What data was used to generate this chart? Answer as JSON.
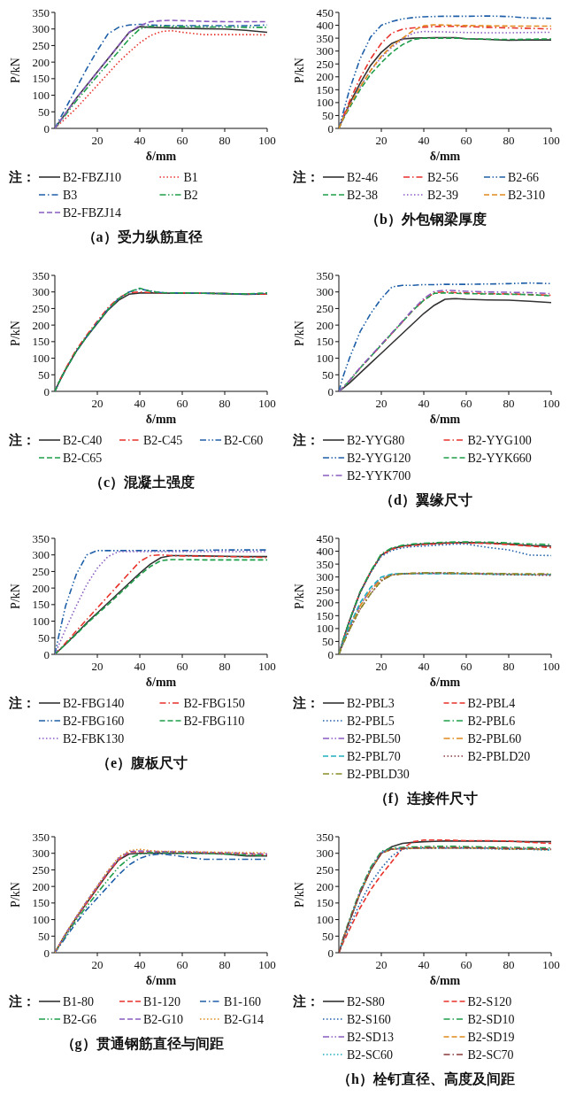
{
  "chart_data": [
    {
      "type": "line",
      "title": "（a）受力纵筋直径",
      "xlabel": "δ/mm",
      "ylabel": "P/kN",
      "legend_title": "注：",
      "legend": "bottom",
      "x": [
        0,
        2,
        5,
        10,
        15,
        20,
        25,
        30,
        35,
        40,
        45,
        50,
        55,
        60,
        70,
        80,
        90,
        100
      ],
      "xlim": [
        0,
        100
      ],
      "xticks": [
        20,
        40,
        60,
        80,
        100
      ],
      "ylim": [
        0,
        350
      ],
      "yticks": [
        0,
        50,
        100,
        150,
        200,
        250,
        300,
        350
      ],
      "series": [
        {
          "name": "B2-FBZJ10",
          "color": "#333333",
          "line_style": "solid",
          "values": [
            0,
            18,
            45,
            90,
            130,
            170,
            210,
            250,
            290,
            307,
            305,
            304,
            303,
            302,
            301,
            300,
            296,
            290
          ]
        },
        {
          "name": "B1",
          "color": "#e8322b",
          "line_style": "dotted",
          "values": [
            0,
            12,
            30,
            60,
            95,
            130,
            165,
            200,
            230,
            258,
            280,
            292,
            295,
            290,
            283,
            283,
            283,
            282
          ]
        },
        {
          "name": "B3",
          "color": "#1f5fa8",
          "line_style": "dashdot",
          "values": [
            0,
            25,
            60,
            120,
            180,
            235,
            285,
            305,
            312,
            314,
            312,
            311,
            310,
            310,
            310,
            310,
            310,
            312
          ]
        },
        {
          "name": "B2",
          "color": "#1e9e4a",
          "line_style": "dashdotdot",
          "values": [
            0,
            16,
            40,
            82,
            120,
            158,
            195,
            232,
            270,
            300,
            308,
            308,
            307,
            307,
            306,
            306,
            305,
            305
          ]
        },
        {
          "name": "B2-FBZJ14",
          "color": "#8a5cc0",
          "line_style": "dashed",
          "values": [
            0,
            18,
            45,
            90,
            130,
            170,
            210,
            250,
            290,
            310,
            322,
            325,
            326,
            325,
            323,
            322,
            322,
            322
          ]
        }
      ]
    },
    {
      "type": "line",
      "title": "（b）外包钢梁厚度",
      "xlabel": "δ/mm",
      "ylabel": "P/kN",
      "legend_title": "注：",
      "legend": "bottom",
      "x": [
        0,
        2,
        5,
        10,
        15,
        20,
        25,
        30,
        35,
        40,
        45,
        50,
        55,
        60,
        70,
        80,
        90,
        100
      ],
      "xlim": [
        0,
        100
      ],
      "xticks": [
        20,
        40,
        60,
        80,
        100
      ],
      "ylim": [
        0,
        450
      ],
      "yticks": [
        0,
        50,
        100,
        150,
        200,
        250,
        300,
        350,
        400,
        450
      ],
      "series": [
        {
          "name": "B2-46",
          "color": "#333333",
          "line_style": "solid",
          "values": [
            0,
            40,
            95,
            175,
            245,
            295,
            330,
            347,
            350,
            351,
            352,
            352,
            352,
            348,
            345,
            342,
            343,
            343
          ]
        },
        {
          "name": "B2-56",
          "color": "#e8322b",
          "line_style": "dashdot",
          "values": [
            0,
            45,
            105,
            195,
            270,
            330,
            370,
            385,
            390,
            393,
            395,
            396,
            396,
            395,
            392,
            390,
            388,
            386
          ]
        },
        {
          "name": "B2-66",
          "color": "#1f5fa8",
          "line_style": "dashdotdot",
          "values": [
            0,
            60,
            150,
            270,
            355,
            400,
            415,
            425,
            430,
            433,
            434,
            435,
            435,
            435,
            436,
            434,
            428,
            427
          ]
        },
        {
          "name": "B2-38",
          "color": "#1e9e4a",
          "line_style": "dashed",
          "values": [
            0,
            35,
            80,
            150,
            210,
            255,
            295,
            325,
            345,
            350,
            350,
            350,
            350,
            348,
            346,
            345,
            346,
            347
          ]
        },
        {
          "name": "B2-39",
          "color": "#8a5cc0",
          "line_style": "dotted",
          "values": [
            0,
            38,
            88,
            160,
            225,
            275,
            315,
            345,
            370,
            376,
            375,
            374,
            373,
            372,
            371,
            371,
            372,
            373
          ]
        },
        {
          "name": "B2-310",
          "color": "#e08a1e",
          "line_style": "dashed",
          "values": [
            0,
            38,
            88,
            160,
            225,
            280,
            320,
            350,
            380,
            398,
            402,
            401,
            400,
            399,
            398,
            397,
            397,
            397
          ]
        }
      ]
    },
    {
      "type": "line",
      "title": "（c）混凝土强度",
      "xlabel": "δ/mm",
      "ylabel": "P/kN",
      "legend_title": "注：",
      "legend": "bottom",
      "x": [
        0,
        2,
        5,
        10,
        15,
        20,
        25,
        30,
        35,
        40,
        45,
        50,
        55,
        60,
        70,
        80,
        90,
        100
      ],
      "xlim": [
        0,
        100
      ],
      "xticks": [
        20,
        40,
        60,
        80,
        100
      ],
      "ylim": [
        0,
        350
      ],
      "yticks": [
        0,
        50,
        100,
        150,
        200,
        250,
        300,
        350
      ],
      "series": [
        {
          "name": "B2-C40",
          "color": "#333333",
          "line_style": "solid",
          "values": [
            0,
            28,
            65,
            120,
            165,
            205,
            245,
            275,
            293,
            297,
            297,
            297,
            296,
            296,
            296,
            295,
            293,
            294
          ]
        },
        {
          "name": "B2-C45",
          "color": "#e8322b",
          "line_style": "dashdot",
          "values": [
            0,
            30,
            68,
            125,
            170,
            212,
            252,
            282,
            298,
            300,
            298,
            297,
            297,
            297,
            296,
            295,
            294,
            293
          ]
        },
        {
          "name": "B2-C60",
          "color": "#1f5fa8",
          "line_style": "dashdotdot",
          "values": [
            0,
            28,
            65,
            120,
            165,
            208,
            248,
            280,
            300,
            309,
            303,
            298,
            297,
            297,
            296,
            295,
            293,
            296
          ]
        },
        {
          "name": "B2-C65",
          "color": "#1e9e4a",
          "line_style": "dashed",
          "values": [
            0,
            28,
            65,
            120,
            165,
            206,
            246,
            279,
            300,
            311,
            302,
            298,
            297,
            297,
            296,
            295,
            294,
            297
          ]
        }
      ]
    },
    {
      "type": "line",
      "title": "（d）翼缘尺寸",
      "xlabel": "δ/mm",
      "ylabel": "P/kN",
      "legend_title": "注：",
      "legend": "bottom",
      "x": [
        0,
        2,
        5,
        10,
        15,
        20,
        25,
        30,
        35,
        40,
        45,
        50,
        55,
        60,
        70,
        80,
        90,
        100
      ],
      "xlim": [
        0,
        100
      ],
      "xticks": [
        20,
        40,
        60,
        80,
        100
      ],
      "ylim": [
        0,
        350
      ],
      "yticks": [
        0,
        50,
        100,
        150,
        200,
        250,
        300,
        350
      ],
      "series": [
        {
          "name": "B2-YYG80",
          "color": "#333333",
          "line_style": "solid",
          "values": [
            0,
            10,
            25,
            55,
            85,
            115,
            145,
            175,
            205,
            235,
            260,
            278,
            280,
            278,
            276,
            275,
            272,
            268
          ]
        },
        {
          "name": "B2-YYG100",
          "color": "#e8322b",
          "line_style": "dashdot",
          "values": [
            0,
            12,
            32,
            70,
            105,
            140,
            175,
            210,
            245,
            275,
            298,
            300,
            298,
            297,
            295,
            294,
            292,
            290
          ]
        },
        {
          "name": "B2-YYG120",
          "color": "#1f5fa8",
          "line_style": "dashdotdot",
          "values": [
            0,
            45,
            100,
            180,
            235,
            280,
            315,
            320,
            320,
            322,
            322,
            323,
            323,
            323,
            324,
            325,
            327,
            325
          ]
        },
        {
          "name": "B2-YYK660",
          "color": "#1e9e4a",
          "line_style": "dashed",
          "values": [
            0,
            12,
            32,
            70,
            105,
            140,
            175,
            210,
            245,
            275,
            296,
            297,
            296,
            295,
            294,
            293,
            292,
            288
          ]
        },
        {
          "name": "B2-YYK700",
          "color": "#8a5cc0",
          "line_style": "dashdot",
          "values": [
            0,
            12,
            33,
            72,
            107,
            142,
            177,
            212,
            248,
            280,
            302,
            305,
            304,
            302,
            300,
            299,
            298,
            295
          ]
        }
      ]
    },
    {
      "type": "line",
      "title": "（e）腹板尺寸",
      "xlabel": "δ/mm",
      "ylabel": "P/kN",
      "legend_title": "注：",
      "legend": "bottom",
      "x": [
        0,
        2,
        5,
        10,
        15,
        20,
        25,
        30,
        35,
        40,
        45,
        50,
        55,
        60,
        70,
        80,
        90,
        100
      ],
      "xlim": [
        0,
        100
      ],
      "xticks": [
        20,
        40,
        60,
        80,
        100
      ],
      "ylim": [
        0,
        350
      ],
      "yticks": [
        0,
        50,
        100,
        150,
        200,
        250,
        300,
        350
      ],
      "series": [
        {
          "name": "B2-FBG140",
          "color": "#333333",
          "line_style": "solid",
          "values": [
            0,
            12,
            30,
            62,
            95,
            125,
            155,
            185,
            215,
            245,
            272,
            292,
            298,
            298,
            297,
            296,
            295,
            295
          ]
        },
        {
          "name": "B2-FBG150",
          "color": "#e8322b",
          "line_style": "dashdot",
          "values": [
            0,
            13,
            34,
            70,
            105,
            140,
            175,
            210,
            245,
            280,
            298,
            300,
            298,
            297,
            296,
            295,
            294,
            292
          ]
        },
        {
          "name": "B2-FBG160",
          "color": "#1f5fa8",
          "line_style": "dashdotdot",
          "values": [
            0,
            60,
            145,
            240,
            300,
            313,
            313,
            313,
            313,
            313,
            313,
            313,
            313,
            313,
            314,
            315,
            315,
            315
          ]
        },
        {
          "name": "B2-FBG110",
          "color": "#1e9e4a",
          "line_style": "dashed",
          "values": [
            0,
            12,
            30,
            60,
            92,
            122,
            150,
            180,
            210,
            240,
            265,
            283,
            286,
            286,
            285,
            285,
            285,
            285
          ]
        },
        {
          "name": "B2-FBK130",
          "color": "#8a5cc0",
          "line_style": "dotted",
          "values": [
            0,
            30,
            75,
            145,
            210,
            260,
            295,
            310,
            310,
            310,
            310,
            310,
            310,
            310,
            310,
            310,
            310,
            310
          ]
        }
      ]
    },
    {
      "type": "line",
      "title": "（f）连接件尺寸",
      "xlabel": "δ/mm",
      "ylabel": "P/kN",
      "legend_title": "注：",
      "legend": "bottom",
      "x": [
        0,
        2,
        5,
        10,
        15,
        20,
        25,
        30,
        35,
        40,
        45,
        50,
        55,
        60,
        70,
        80,
        90,
        100
      ],
      "xlim": [
        0,
        100
      ],
      "xticks": [
        20,
        40,
        60,
        80,
        100
      ],
      "ylim": [
        0,
        450
      ],
      "yticks": [
        0,
        50,
        100,
        150,
        200,
        250,
        300,
        350,
        400,
        450
      ],
      "series": [
        {
          "name": "B2-PBL3",
          "color": "#333333",
          "line_style": "solid",
          "values": [
            0,
            55,
            130,
            240,
            320,
            385,
            410,
            420,
            425,
            428,
            430,
            432,
            433,
            434,
            432,
            428,
            422,
            420
          ]
        },
        {
          "name": "B2-PBL4",
          "color": "#e8322b",
          "line_style": "dashed",
          "values": [
            0,
            55,
            130,
            240,
            320,
            385,
            408,
            418,
            422,
            426,
            428,
            430,
            432,
            432,
            430,
            426,
            420,
            414
          ]
        },
        {
          "name": "B2-PBL5",
          "color": "#1f5fa8",
          "line_style": "dotted",
          "values": [
            0,
            55,
            128,
            238,
            318,
            380,
            403,
            413,
            418,
            420,
            423,
            425,
            428,
            428,
            415,
            405,
            385,
            383
          ]
        },
        {
          "name": "B2-PBL6",
          "color": "#1e9e4a",
          "line_style": "dashdot",
          "values": [
            0,
            56,
            132,
            243,
            323,
            390,
            413,
            423,
            428,
            431,
            433,
            435,
            436,
            436,
            435,
            432,
            428,
            426
          ]
        },
        {
          "name": "B2-PBL50",
          "color": "#8a5cc0",
          "line_style": "dashdotdot",
          "values": [
            0,
            45,
            105,
            190,
            250,
            295,
            310,
            312,
            313,
            314,
            314,
            314,
            314,
            313,
            312,
            311,
            310,
            310
          ]
        },
        {
          "name": "B2-PBL60",
          "color": "#e08a1e",
          "line_style": "dashdot",
          "values": [
            0,
            44,
            104,
            188,
            248,
            292,
            308,
            312,
            314,
            315,
            315,
            314,
            314,
            313,
            312,
            311,
            311,
            311
          ]
        },
        {
          "name": "B2-PBL70",
          "color": "#20b0c0",
          "line_style": "dashed",
          "values": [
            0,
            48,
            110,
            200,
            260,
            300,
            312,
            313,
            313,
            313,
            313,
            313,
            313,
            312,
            311,
            310,
            309,
            309
          ]
        },
        {
          "name": "B2-PBLD20",
          "color": "#8b3a3a",
          "line_style": "dotted",
          "values": [
            0,
            40,
            95,
            175,
            235,
            285,
            308,
            312,
            314,
            315,
            315,
            315,
            314,
            313,
            311,
            309,
            308,
            306
          ]
        },
        {
          "name": "B2-PBLD30",
          "color": "#8a8a2a",
          "line_style": "dashdot",
          "values": [
            0,
            40,
            95,
            175,
            235,
            285,
            308,
            313,
            315,
            316,
            317,
            317,
            316,
            315,
            314,
            313,
            312,
            312
          ]
        }
      ]
    },
    {
      "type": "line",
      "title": "（g）贯通钢筋直径与间距",
      "xlabel": "δ/mm",
      "ylabel": "P/kN",
      "legend_title": "注：",
      "legend": "bottom",
      "x": [
        0,
        2,
        5,
        10,
        15,
        20,
        25,
        30,
        35,
        40,
        45,
        50,
        55,
        60,
        70,
        80,
        90,
        100
      ],
      "xlim": [
        0,
        100
      ],
      "xticks": [
        20,
        40,
        60,
        80,
        100
      ],
      "ylim": [
        0,
        350
      ],
      "yticks": [
        0,
        50,
        100,
        150,
        200,
        250,
        300,
        350
      ],
      "series": [
        {
          "name": "B1-80",
          "color": "#333333",
          "line_style": "solid",
          "values": [
            0,
            22,
            55,
            105,
            150,
            195,
            240,
            280,
            298,
            300,
            300,
            300,
            300,
            300,
            300,
            298,
            292,
            292
          ]
        },
        {
          "name": "B1-120",
          "color": "#e8322b",
          "line_style": "dashed",
          "values": [
            0,
            22,
            55,
            105,
            150,
            195,
            240,
            280,
            303,
            305,
            304,
            304,
            304,
            303,
            302,
            300,
            298,
            295
          ]
        },
        {
          "name": "B1-160",
          "color": "#1f5fa8",
          "line_style": "dashdot",
          "values": [
            0,
            18,
            45,
            90,
            130,
            165,
            200,
            235,
            265,
            285,
            295,
            298,
            295,
            290,
            282,
            282,
            282,
            282
          ]
        },
        {
          "name": "B2-G6",
          "color": "#1e9e4a",
          "line_style": "dashdotdot",
          "values": [
            0,
            20,
            50,
            98,
            140,
            180,
            220,
            258,
            285,
            298,
            302,
            302,
            301,
            300,
            299,
            298,
            295,
            293
          ]
        },
        {
          "name": "B2-G10",
          "color": "#8a5cc0",
          "line_style": "dashed",
          "values": [
            0,
            22,
            56,
            107,
            155,
            200,
            245,
            285,
            305,
            307,
            306,
            305,
            305,
            304,
            303,
            302,
            300,
            298
          ]
        },
        {
          "name": "B2-G14",
          "color": "#e08a1e",
          "line_style": "dotted",
          "values": [
            0,
            23,
            57,
            108,
            156,
            202,
            248,
            288,
            308,
            312,
            308,
            306,
            306,
            305,
            304,
            303,
            302,
            301
          ]
        }
      ]
    },
    {
      "type": "line",
      "title": "（h）栓钉直径、高度及间距",
      "xlabel": "δ/mm",
      "ylabel": "P/kN",
      "legend_title": "注：",
      "legend": "bottom",
      "x": [
        0,
        2,
        5,
        10,
        15,
        20,
        25,
        30,
        35,
        40,
        45,
        50,
        55,
        60,
        70,
        80,
        90,
        100
      ],
      "xlim": [
        0,
        100
      ],
      "xticks": [
        20,
        40,
        60,
        80,
        100
      ],
      "ylim": [
        0,
        350
      ],
      "yticks": [
        0,
        50,
        100,
        150,
        200,
        250,
        300,
        350
      ],
      "series": [
        {
          "name": "B2-S80",
          "color": "#333333",
          "line_style": "solid",
          "values": [
            0,
            40,
            95,
            180,
            250,
            300,
            320,
            330,
            333,
            335,
            336,
            337,
            337,
            337,
            337,
            336,
            335,
            335
          ]
        },
        {
          "name": "B2-S120",
          "color": "#e8322b",
          "line_style": "dashed",
          "values": [
            0,
            30,
            70,
            135,
            190,
            235,
            275,
            315,
            335,
            340,
            340,
            340,
            339,
            338,
            338,
            337,
            333,
            330
          ]
        },
        {
          "name": "B2-S160",
          "color": "#1f5fa8",
          "line_style": "dotted",
          "values": [
            0,
            35,
            80,
            150,
            210,
            255,
            292,
            312,
            315,
            315,
            316,
            316,
            316,
            315,
            314,
            312,
            312,
            310
          ]
        },
        {
          "name": "B2-SD10",
          "color": "#1e9e4a",
          "line_style": "dashdot",
          "values": [
            0,
            44,
            101,
            188,
            258,
            306,
            316,
            318,
            319,
            320,
            321,
            321,
            321,
            320,
            319,
            318,
            317,
            316
          ]
        },
        {
          "name": "B2-SD13",
          "color": "#8a5cc0",
          "line_style": "dashdotdot",
          "values": [
            0,
            40,
            95,
            182,
            252,
            302,
            313,
            314,
            315,
            316,
            316,
            316,
            316,
            316,
            315,
            314,
            313,
            312
          ]
        },
        {
          "name": "B2-SD19",
          "color": "#e08a1e",
          "line_style": "dashed",
          "values": [
            0,
            40,
            95,
            180,
            250,
            300,
            312,
            314,
            315,
            316,
            316,
            316,
            316,
            316,
            315,
            313,
            312,
            311
          ]
        },
        {
          "name": "B2-SC60",
          "color": "#20b0c0",
          "line_style": "dotted",
          "values": [
            0,
            41,
            96,
            182,
            252,
            303,
            313,
            315,
            316,
            316,
            316,
            316,
            316,
            316,
            315,
            313,
            312,
            310
          ]
        },
        {
          "name": "B2-SC70",
          "color": "#8b3a3a",
          "line_style": "dashdot",
          "values": [
            0,
            40,
            95,
            180,
            250,
            300,
            313,
            315,
            316,
            317,
            317,
            317,
            317,
            317,
            316,
            315,
            314,
            312
          ]
        }
      ]
    }
  ]
}
